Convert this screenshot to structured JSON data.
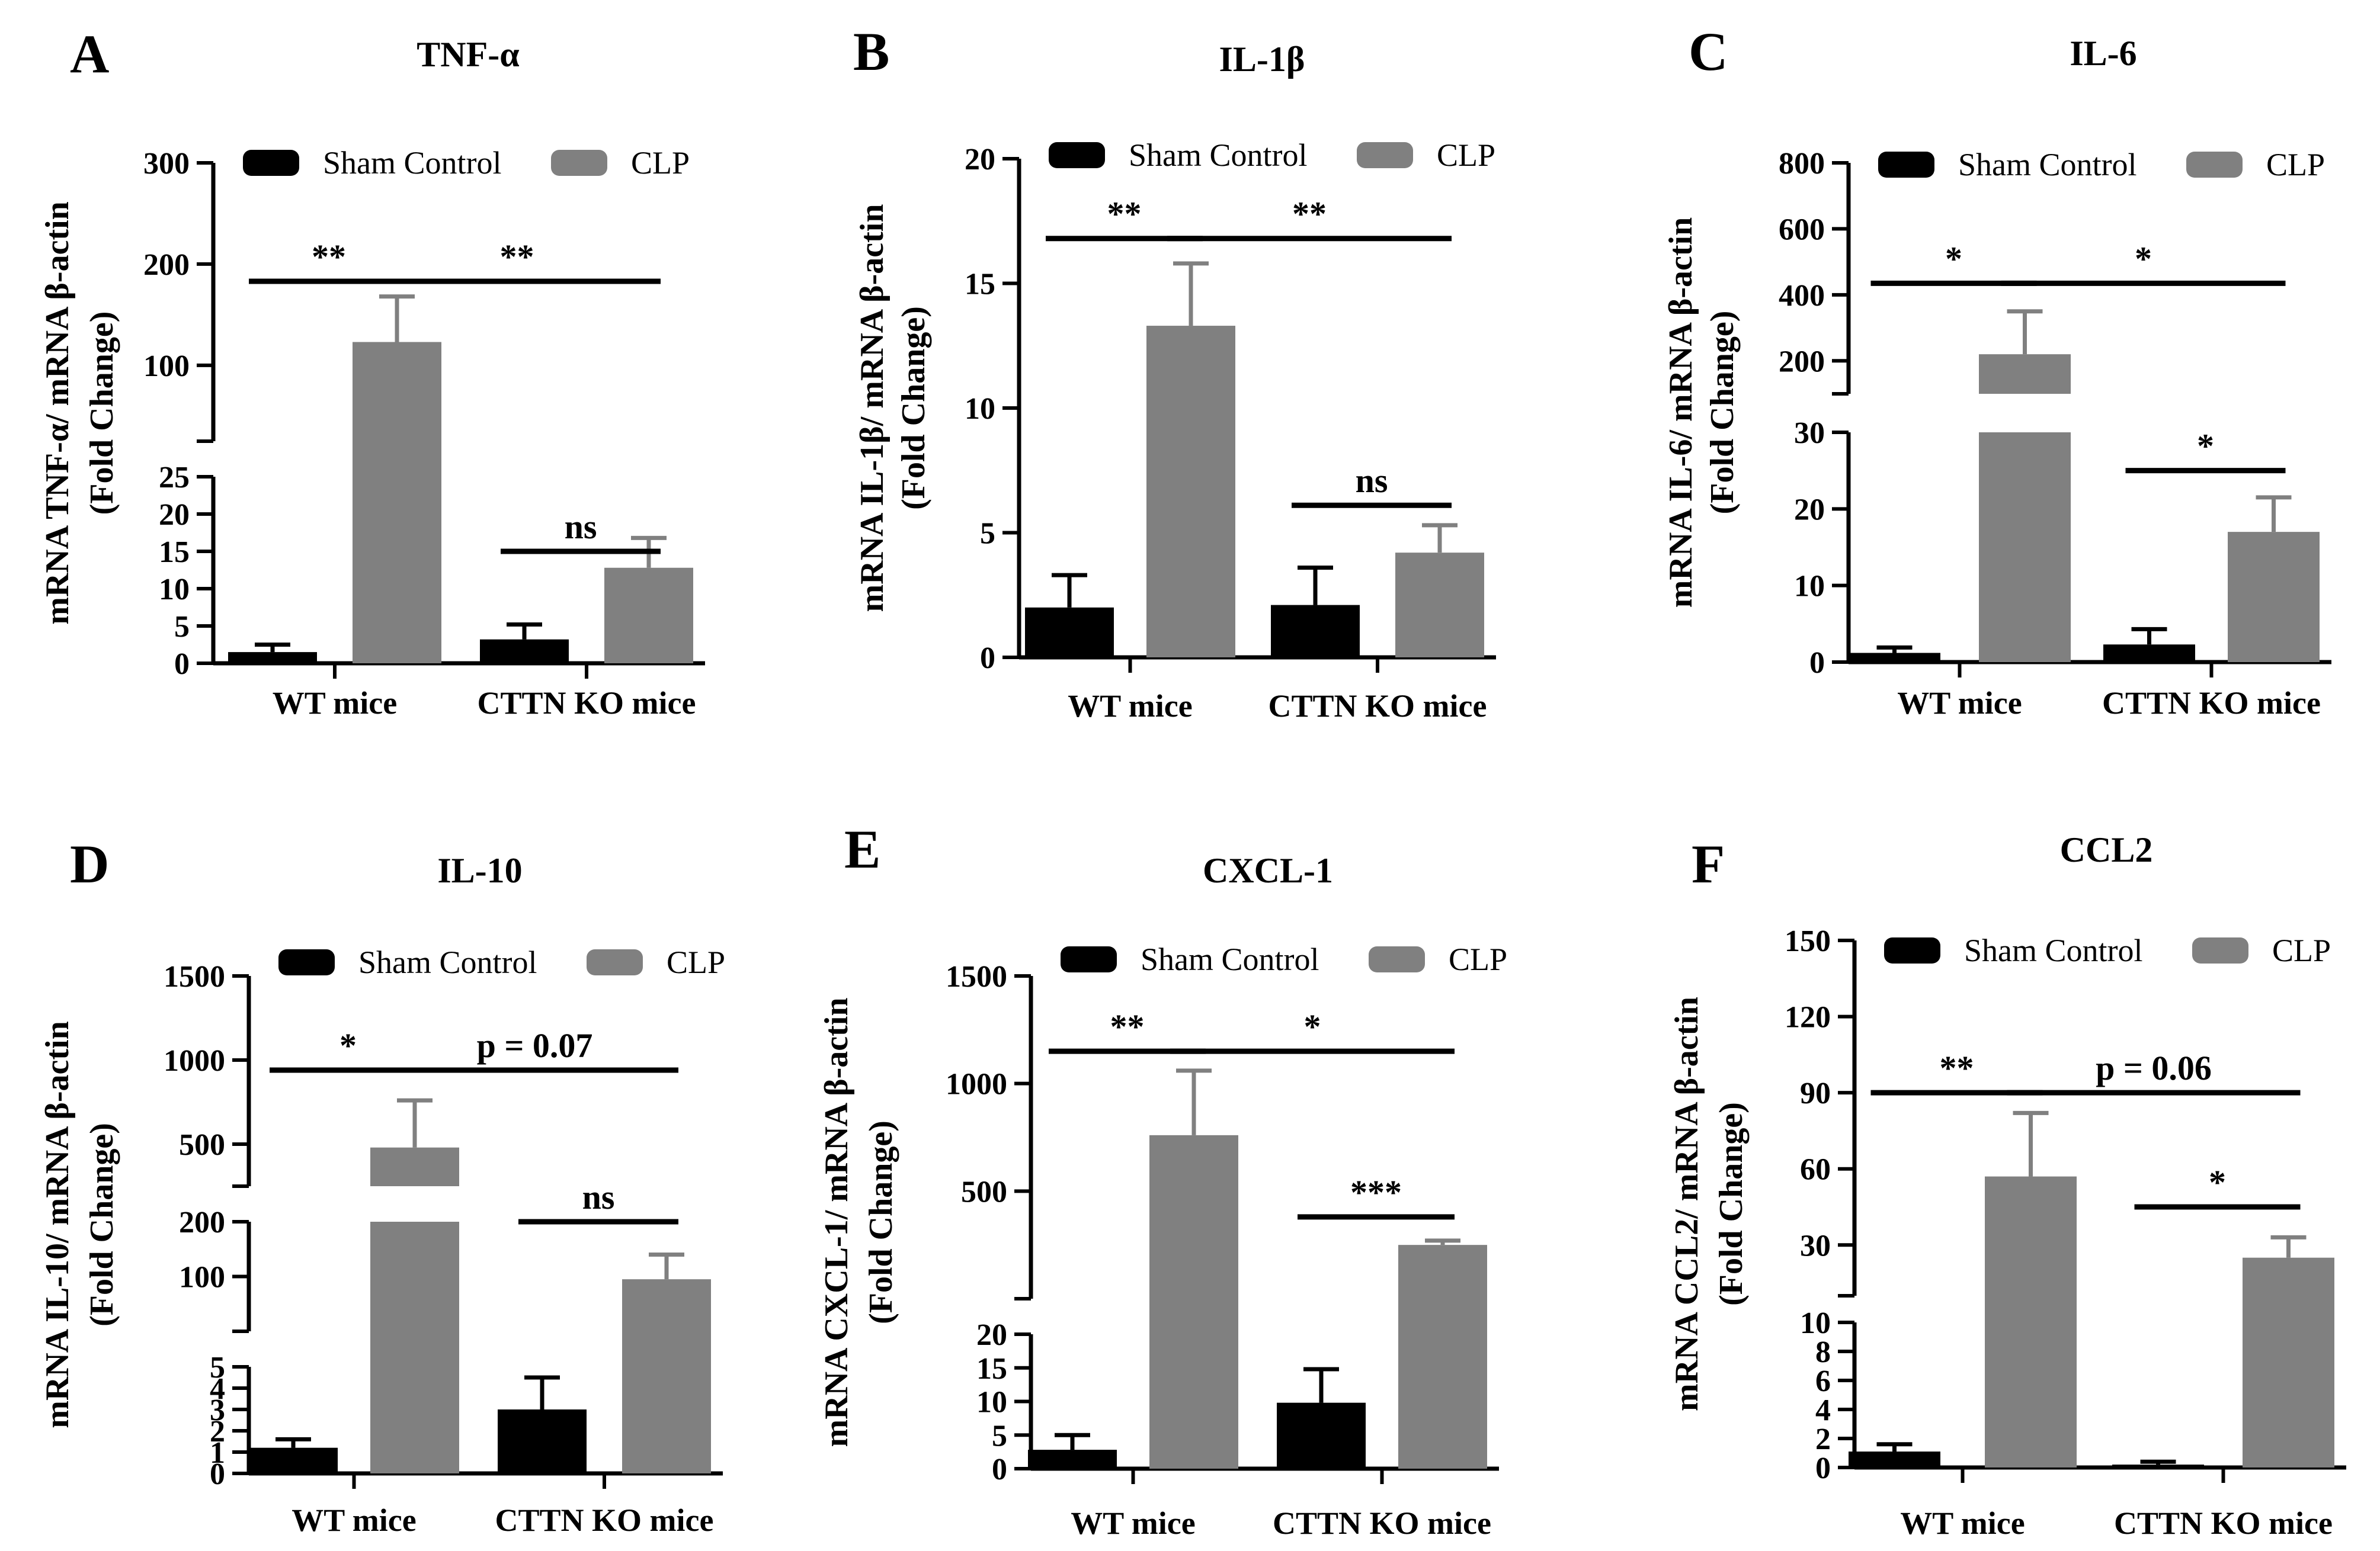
{
  "chart_data": [
    {
      "letter": "A",
      "title": "TNF-α",
      "type": "bar",
      "ylabel": [
        "mRNA TNF-α/ mRNA β-actin",
        "(Fold Change)"
      ],
      "categories": [
        "WT mice",
        "CTTN KO mice"
      ],
      "legend": {
        "placement": "top",
        "entries": [
          "Sham Control",
          "CLP"
        ]
      },
      "series": [
        {
          "name": "Sham Control",
          "color": "#000000",
          "values": [
            1.5,
            3.2
          ],
          "errors": [
            1.0,
            2.0
          ]
        },
        {
          "name": "CLP",
          "color": "#808080",
          "values": [
            123,
            12.8
          ],
          "errors": [
            45,
            4.0
          ]
        }
      ],
      "axis_segments": [
        {
          "range": [
            0,
            25
          ],
          "ticks": [
            0,
            5,
            10,
            15,
            20,
            25
          ],
          "tick_labels": [
            "0",
            "5",
            "10",
            "15",
            "20",
            "25"
          ],
          "px": [
            1120,
            805
          ]
        },
        {
          "range": [
            25,
            300
          ],
          "ticks": [
            100,
            200,
            300
          ],
          "tick_labels": [
            "100",
            "200",
            "300"
          ],
          "px": [
            745,
            275
          ]
        }
      ],
      "significance": [
        {
          "label": "**",
          "from": [
            0,
            0
          ],
          "to": [
            0,
            1
          ],
          "y": 183
        },
        {
          "label": "**",
          "from": [
            0,
            1
          ],
          "to": [
            1,
            1
          ],
          "y": 183
        },
        {
          "label": "ns",
          "from": [
            1,
            0
          ],
          "to": [
            1,
            1
          ],
          "y": 15
        }
      ]
    },
    {
      "letter": "B",
      "title": "IL-1β",
      "type": "bar",
      "ylabel": [
        "mRNA IL-1β/ mRNA β-actin",
        "(Fold Change)"
      ],
      "categories": [
        "WT mice",
        "CTTN KO mice"
      ],
      "legend": {
        "placement": "top",
        "entries": [
          "Sham Control",
          "CLP"
        ]
      },
      "series": [
        {
          "name": "Sham Control",
          "color": "#000000",
          "values": [
            2.0,
            2.1
          ],
          "errors": [
            1.3,
            1.5
          ]
        },
        {
          "name": "CLP",
          "color": "#808080",
          "values": [
            13.3,
            4.2
          ],
          "errors": [
            2.5,
            1.1
          ]
        }
      ],
      "axis_segments": [
        {
          "range": [
            0,
            20
          ],
          "ticks": [
            0,
            5,
            10,
            15,
            20
          ],
          "tick_labels": [
            "0",
            "5",
            "10",
            "15",
            "20"
          ],
          "px": [
            1110,
            268
          ]
        }
      ],
      "significance": [
        {
          "label": "**",
          "from": [
            0,
            0
          ],
          "to": [
            0,
            1
          ],
          "y": 16.8
        },
        {
          "label": "**",
          "from": [
            0,
            1
          ],
          "to": [
            1,
            1
          ],
          "y": 16.8
        },
        {
          "label": "ns",
          "from": [
            1,
            0
          ],
          "to": [
            1,
            1
          ],
          "y": 6.1
        }
      ]
    },
    {
      "letter": "C",
      "title": "IL-6",
      "type": "bar",
      "ylabel": [
        "mRNA IL-6/ mRNA β-actin",
        "(Fold Change)"
      ],
      "categories": [
        "WT mice",
        "CTTN KO mice"
      ],
      "legend": {
        "placement": "top",
        "entries": [
          "Sham Control",
          "CLP"
        ]
      },
      "series": [
        {
          "name": "Sham Control",
          "color": "#000000",
          "values": [
            1.2,
            2.3
          ],
          "errors": [
            0.7,
            2.0
          ]
        },
        {
          "name": "CLP",
          "color": "#808080",
          "values": [
            220,
            17
          ],
          "errors": [
            130,
            4.5
          ]
        }
      ],
      "axis_segments": [
        {
          "range": [
            0,
            30
          ],
          "ticks": [
            0,
            10,
            20,
            30
          ],
          "tick_labels": [
            "0",
            "10",
            "20",
            "30"
          ],
          "px": [
            1118,
            730
          ]
        },
        {
          "range": [
            100,
            800
          ],
          "ticks": [
            200,
            400,
            600,
            800
          ],
          "tick_labels": [
            "200",
            "400",
            "600",
            "800"
          ],
          "px": [
            665,
            275
          ]
        }
      ],
      "significance": [
        {
          "label": "*",
          "from": [
            0,
            0
          ],
          "to": [
            0,
            1
          ],
          "y": 435
        },
        {
          "label": "*",
          "from": [
            0,
            1
          ],
          "to": [
            1,
            1
          ],
          "y": 435
        },
        {
          "label": "*",
          "from": [
            1,
            0
          ],
          "to": [
            1,
            1
          ],
          "y": 25
        }
      ]
    },
    {
      "letter": "D",
      "title": "IL-10",
      "type": "bar",
      "ylabel": [
        "mRNA IL-10/ mRNA β-actin",
        "(Fold Change)"
      ],
      "categories": [
        "WT mice",
        "CTTN KO mice"
      ],
      "legend": {
        "placement": "top",
        "entries": [
          "Sham Control",
          "CLP"
        ]
      },
      "series": [
        {
          "name": "Sham Control",
          "color": "#000000",
          "values": [
            1.2,
            3.0
          ],
          "errors": [
            0.4,
            1.5
          ]
        },
        {
          "name": "CLP",
          "color": "#808080",
          "values": [
            480,
            95
          ],
          "errors": [
            280,
            45
          ]
        }
      ],
      "axis_segments": [
        {
          "range": [
            0,
            5
          ],
          "ticks": [
            0,
            1,
            2,
            3,
            4,
            5
          ],
          "tick_labels": [
            "0",
            "1",
            "2",
            "3",
            "4",
            "5"
          ],
          "px": [
            2488,
            2308
          ]
        },
        {
          "range": [
            0,
            200
          ],
          "ticks": [
            100,
            200
          ],
          "tick_labels": [
            "100",
            "200"
          ],
          "px": [
            2248,
            2063
          ]
        },
        {
          "range": [
            250,
            1500
          ],
          "ticks": [
            500,
            1000,
            1500
          ],
          "tick_labels": [
            "500",
            "1000",
            "1500"
          ],
          "px": [
            2003,
            1648
          ]
        }
      ],
      "significance": [
        {
          "label": "*",
          "from": [
            0,
            0
          ],
          "to": [
            0,
            1
          ],
          "y": 940
        },
        {
          "label": "p = 0.07",
          "from": [
            0,
            1
          ],
          "to": [
            1,
            1
          ],
          "y": 940
        },
        {
          "label": "ns",
          "from": [
            1,
            0
          ],
          "to": [
            1,
            1
          ],
          "y": 200
        }
      ]
    },
    {
      "letter": "E",
      "title": "CXCL-1",
      "type": "bar",
      "ylabel": [
        "mRNA CXCL-1/ mRNA β-actin",
        "(Fold Change)"
      ],
      "categories": [
        "WT mice",
        "CTTN KO mice"
      ],
      "legend": {
        "placement": "top",
        "entries": [
          "Sham Control",
          "CLP"
        ]
      },
      "series": [
        {
          "name": "Sham Control",
          "color": "#000000",
          "values": [
            2.8,
            9.8
          ],
          "errors": [
            2.2,
            5.0
          ]
        },
        {
          "name": "CLP",
          "color": "#808080",
          "values": [
            760,
            250
          ],
          "errors": [
            300,
            20
          ]
        }
      ],
      "axis_segments": [
        {
          "range": [
            0,
            20
          ],
          "ticks": [
            0,
            5,
            10,
            15,
            20
          ],
          "tick_labels": [
            "0",
            "5",
            "10",
            "15",
            "20"
          ],
          "px": [
            2480,
            2253
          ]
        },
        {
          "range": [
            0,
            1500
          ],
          "ticks": [
            500,
            1000,
            1500
          ],
          "tick_labels": [
            "500",
            "1000",
            "1500"
          ],
          "px": [
            2193,
            1648
          ]
        }
      ],
      "significance": [
        {
          "label": "**",
          "from": [
            0,
            0
          ],
          "to": [
            0,
            1
          ],
          "y": 1150
        },
        {
          "label": "*",
          "from": [
            0,
            1
          ],
          "to": [
            1,
            1
          ],
          "y": 1150
        },
        {
          "label": "***",
          "from": [
            1,
            0
          ],
          "to": [
            1,
            1
          ],
          "y": 380
        }
      ]
    },
    {
      "letter": "F",
      "title": "CCL2",
      "type": "bar",
      "ylabel": [
        "mRNA CCL2/ mRNA β-actin",
        "(Fold Change)"
      ],
      "categories": [
        "WT mice",
        "CTTN KO mice"
      ],
      "legend": {
        "placement": "top",
        "entries": [
          "Sham Control",
          "CLP"
        ]
      },
      "series": [
        {
          "name": "Sham Control",
          "color": "#000000",
          "values": [
            1.1,
            0.2
          ],
          "errors": [
            0.5,
            0.2
          ]
        },
        {
          "name": "CLP",
          "color": "#808080",
          "values": [
            57,
            25
          ],
          "errors": [
            25,
            8
          ]
        }
      ],
      "axis_segments": [
        {
          "range": [
            0,
            10
          ],
          "ticks": [
            0,
            2,
            4,
            6,
            8,
            10
          ],
          "tick_labels": [
            "0",
            "2",
            "4",
            "6",
            "8",
            "10"
          ],
          "px": [
            2478,
            2233
          ]
        },
        {
          "range": [
            10,
            150
          ],
          "ticks": [
            30,
            60,
            90,
            120,
            150
          ],
          "tick_labels": [
            "30",
            "60",
            "90",
            "120",
            "150"
          ],
          "px": [
            2188,
            1588
          ]
        }
      ],
      "significance": [
        {
          "label": "**",
          "from": [
            0,
            0
          ],
          "to": [
            0,
            1
          ],
          "y": 90
        },
        {
          "label": "p = 0.06",
          "from": [
            0,
            1
          ],
          "to": [
            1,
            1
          ],
          "y": 90
        },
        {
          "label": "*",
          "from": [
            1,
            0
          ],
          "to": [
            1,
            1
          ],
          "y": 45
        }
      ]
    }
  ]
}
